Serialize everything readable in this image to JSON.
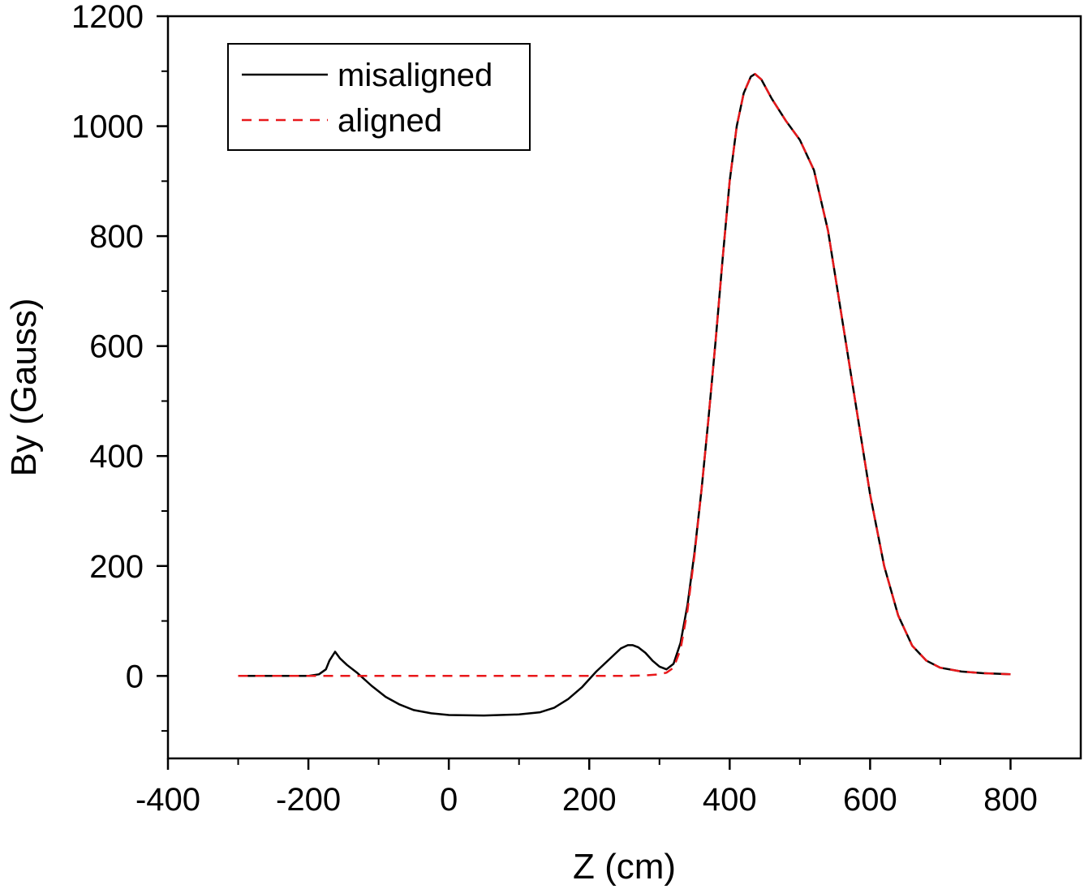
{
  "chart_data": {
    "type": "line",
    "title": "",
    "xlabel": "Z (cm)",
    "ylabel": "By (Gauss)",
    "xlim": [
      -400,
      900
    ],
    "ylim": [
      -150,
      1200
    ],
    "xticks": [
      -400,
      -200,
      0,
      200,
      400,
      600,
      800
    ],
    "xtick_labels": [
      "-400",
      "-200",
      "0",
      "200",
      "400",
      "600",
      "800"
    ],
    "yticks": [
      0,
      200,
      400,
      600,
      800,
      1000,
      1200
    ],
    "ytick_labels": [
      "0",
      "200",
      "400",
      "600",
      "800",
      "1000",
      "1200"
    ],
    "grid": false,
    "legend_position": "top-left",
    "series": [
      {
        "name": "misaligned",
        "color": "#000000",
        "style": "solid",
        "x": [
          -300,
          -250,
          -200,
          -185,
          -175,
          -170,
          -162,
          -155,
          -145,
          -130,
          -110,
          -90,
          -70,
          -50,
          -25,
          0,
          50,
          100,
          130,
          150,
          170,
          190,
          210,
          230,
          245,
          255,
          262,
          270,
          280,
          290,
          300,
          310,
          320,
          330,
          340,
          350,
          360,
          370,
          380,
          390,
          400,
          410,
          420,
          430,
          436,
          445,
          460,
          480,
          500,
          520,
          540,
          560,
          580,
          600,
          620,
          640,
          660,
          680,
          700,
          730,
          760,
          800
        ],
        "y": [
          0,
          0,
          0,
          3,
          12,
          28,
          44,
          32,
          20,
          5,
          -18,
          -38,
          -52,
          -62,
          -68,
          -71,
          -72,
          -70,
          -66,
          -58,
          -42,
          -20,
          8,
          32,
          50,
          56,
          56,
          52,
          42,
          28,
          17,
          12,
          22,
          60,
          130,
          225,
          340,
          470,
          610,
          760,
          900,
          1000,
          1060,
          1090,
          1095,
          1085,
          1050,
          1010,
          975,
          920,
          810,
          650,
          490,
          330,
          200,
          110,
          55,
          28,
          15,
          8,
          5,
          3
        ]
      },
      {
        "name": "aligned",
        "color": "#e8181b",
        "style": "dashed",
        "x": [
          -300,
          -250,
          -200,
          -150,
          -100,
          0,
          100,
          200,
          250,
          280,
          300,
          310,
          320,
          330,
          340,
          350,
          360,
          370,
          380,
          390,
          400,
          410,
          420,
          430,
          436,
          445,
          460,
          480,
          500,
          520,
          540,
          560,
          580,
          600,
          620,
          640,
          660,
          680,
          700,
          730,
          760,
          800
        ],
        "y": [
          0,
          0,
          0,
          0,
          0,
          0,
          0,
          0,
          0,
          1,
          3,
          6,
          15,
          48,
          120,
          220,
          340,
          470,
          610,
          760,
          900,
          1000,
          1060,
          1090,
          1095,
          1085,
          1050,
          1010,
          975,
          920,
          810,
          650,
          490,
          330,
          200,
          110,
          55,
          28,
          15,
          8,
          5,
          3
        ]
      }
    ]
  }
}
